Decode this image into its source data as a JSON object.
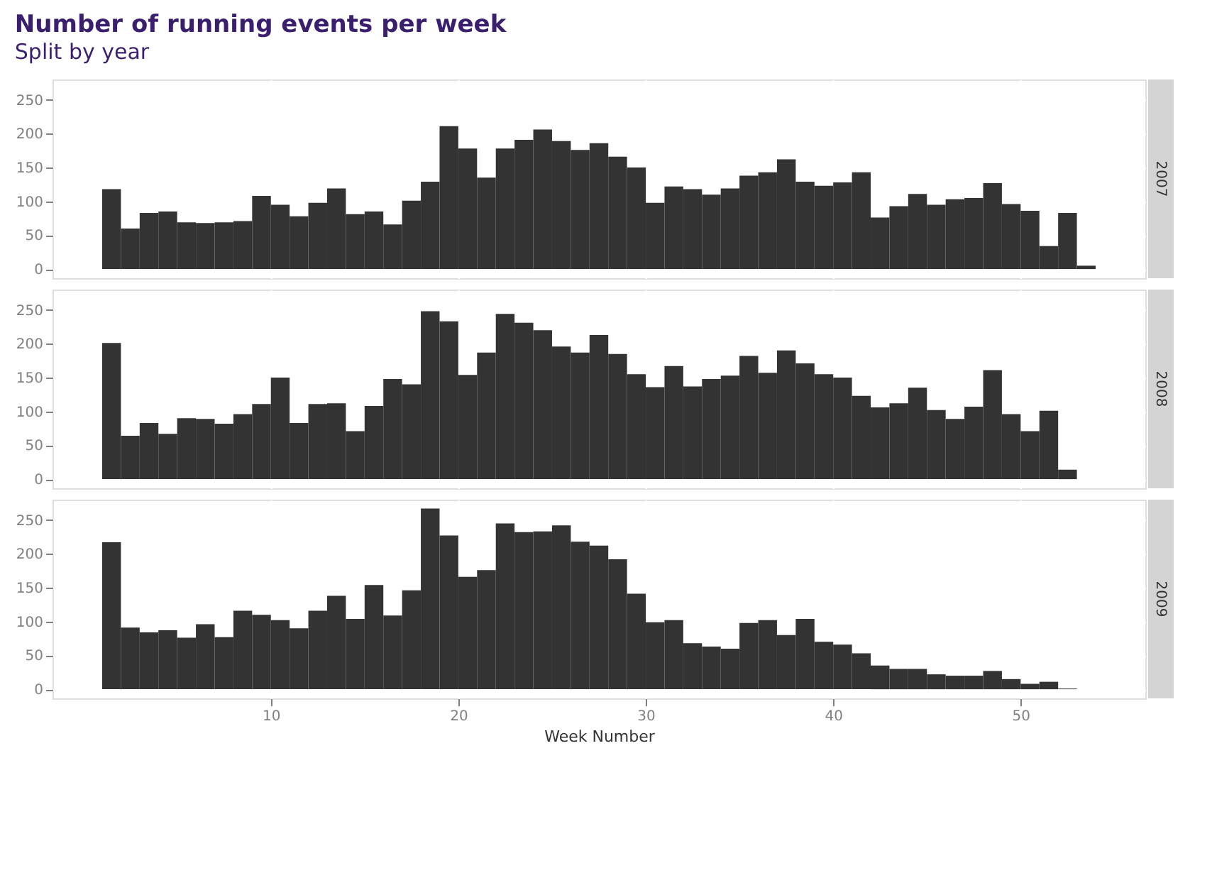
{
  "chart_data": [
    {
      "type": "histogram",
      "title": "Number of running events per week",
      "subtitle": "Split by year",
      "annotations": [
        "2007"
      ],
      "color": "#333333",
      "bins": [
        1,
        2,
        3,
        4,
        5,
        6,
        7,
        8,
        9,
        10,
        11,
        12,
        13,
        14,
        15,
        16,
        17,
        18,
        19,
        20,
        21,
        22,
        23,
        24,
        25,
        26,
        27,
        28,
        29,
        30,
        31,
        32,
        33,
        34,
        35,
        36,
        37,
        38,
        39,
        40,
        41,
        42,
        43,
        44,
        45,
        46,
        47,
        48,
        49,
        50,
        51,
        52,
        53,
        54
      ],
      "values": [
        118,
        60,
        83,
        85,
        69,
        68,
        69,
        71,
        108,
        95,
        78,
        98,
        119,
        81,
        85,
        66,
        101,
        129,
        211,
        178,
        135,
        178,
        191,
        206,
        189,
        176,
        186,
        166,
        150,
        98,
        122,
        118,
        110,
        119,
        138,
        143,
        162,
        129,
        123,
        128,
        143,
        76,
        93,
        111,
        95,
        103,
        105,
        127,
        96,
        86,
        34,
        83,
        5
      ],
      "xlim": [
        -1.65,
        56.65
      ],
      "ylim": [
        -13.5,
        280
      ],
      "xticks": [
        10,
        20,
        30,
        40,
        50
      ],
      "yticks": [
        0,
        50,
        100,
        150,
        200,
        250
      ],
      "grid": true,
      "tick_labels": "y"
    },
    {
      "type": "histogram",
      "annotations": [
        "2008"
      ],
      "color": "#333333",
      "bins": [
        1,
        2,
        3,
        4,
        5,
        6,
        7,
        8,
        9,
        10,
        11,
        12,
        13,
        14,
        15,
        16,
        17,
        18,
        19,
        20,
        21,
        22,
        23,
        24,
        25,
        26,
        27,
        28,
        29,
        30,
        31,
        32,
        33,
        34,
        35,
        36,
        37,
        38,
        39,
        40,
        41,
        42,
        43,
        44,
        45,
        46,
        47,
        48,
        49,
        50,
        51,
        52,
        53
      ],
      "values": [
        201,
        64,
        83,
        67,
        90,
        89,
        82,
        96,
        111,
        150,
        83,
        111,
        112,
        71,
        108,
        148,
        140,
        248,
        233,
        154,
        187,
        244,
        231,
        220,
        196,
        187,
        213,
        185,
        155,
        136,
        167,
        137,
        148,
        153,
        182,
        157,
        190,
        171,
        155,
        150,
        123,
        106,
        112,
        135,
        102,
        89,
        107,
        161,
        96,
        71,
        101,
        14
      ],
      "xlim": [
        -1.65,
        56.65
      ],
      "ylim": [
        -13.5,
        280
      ],
      "xticks": [
        10,
        20,
        30,
        40,
        50
      ],
      "yticks": [
        0,
        50,
        100,
        150,
        200,
        250
      ],
      "grid": true,
      "tick_labels": "y"
    },
    {
      "type": "histogram",
      "annotations": [
        "2009"
      ],
      "color": "#333333",
      "xlabel": "Week Number",
      "bins": [
        1,
        2,
        3,
        4,
        5,
        6,
        7,
        8,
        9,
        10,
        11,
        12,
        13,
        14,
        15,
        16,
        17,
        18,
        19,
        20,
        21,
        22,
        23,
        24,
        25,
        26,
        27,
        28,
        29,
        30,
        31,
        32,
        33,
        34,
        35,
        36,
        37,
        38,
        39,
        40,
        41,
        42,
        43,
        44,
        45,
        46,
        47,
        48,
        49,
        50,
        51,
        52,
        53
      ],
      "values": [
        217,
        91,
        84,
        87,
        76,
        96,
        77,
        116,
        110,
        102,
        90,
        116,
        138,
        104,
        154,
        109,
        146,
        267,
        227,
        166,
        176,
        245,
        232,
        233,
        242,
        218,
        212,
        192,
        141,
        99,
        102,
        68,
        63,
        60,
        98,
        102,
        80,
        104,
        70,
        66,
        53,
        35,
        30,
        30,
        22,
        20,
        20,
        27,
        15,
        8,
        11,
        1
      ],
      "xlim": [
        -1.65,
        56.65
      ],
      "ylim": [
        -13.5,
        280
      ],
      "xticks": [
        10,
        20,
        30,
        40,
        50
      ],
      "yticks": [
        0,
        50,
        100,
        150,
        200,
        250
      ],
      "grid": true
    }
  ]
}
